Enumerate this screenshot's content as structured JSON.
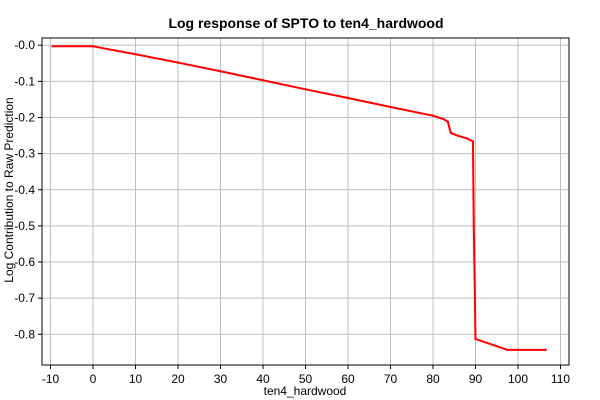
{
  "chart_data": {
    "type": "line",
    "title": "Log response of SPTO to ten4_hardwood",
    "xlabel": "ten4_hardwood",
    "ylabel": "Log Contribution to Raw Prediction",
    "xlim": [
      -12,
      112
    ],
    "ylim": [
      -0.885,
      0.02
    ],
    "x_ticks": [
      -10,
      0,
      10,
      20,
      30,
      40,
      50,
      60,
      70,
      80,
      90,
      100,
      110
    ],
    "y_ticks": [
      0.0,
      -0.1,
      -0.2,
      -0.3,
      -0.4,
      -0.5,
      -0.6,
      -0.7,
      -0.8
    ],
    "y_tick_labels": [
      "-0.0",
      "-0.1",
      "-0.2",
      "-0.3",
      "-0.4",
      "-0.5",
      "-0.6",
      "-0.7",
      "-0.8"
    ],
    "grid": true,
    "series": [
      {
        "color": "#ff0000",
        "x": [
          -9.5,
          0,
          10,
          20,
          30,
          40,
          50,
          60,
          70,
          80,
          82.6,
          83.5,
          84.2,
          86,
          88,
          89.4,
          89.6,
          90,
          95,
          97.5,
          100,
          106.5
        ],
        "y": [
          -0.003,
          -0.003,
          -0.025,
          -0.048,
          -0.072,
          -0.097,
          -0.122,
          -0.146,
          -0.171,
          -0.195,
          -0.205,
          -0.212,
          -0.243,
          -0.251,
          -0.258,
          -0.266,
          -0.5,
          -0.813,
          -0.833,
          -0.843,
          -0.843,
          -0.843
        ]
      }
    ]
  }
}
